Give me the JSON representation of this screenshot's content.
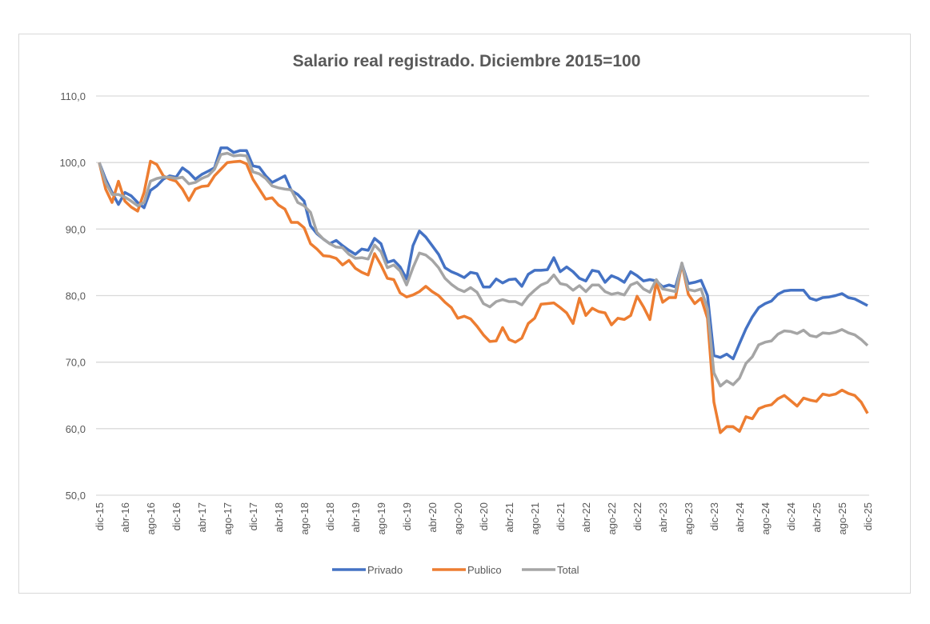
{
  "chart_data": {
    "type": "line",
    "title": "Salario real registrado.  Diciembre 2015=100",
    "xlabel": "",
    "ylabel": "",
    "frequency": "monthly",
    "x_tick_labels": [
      "dic-15",
      "abr-16",
      "ago-16",
      "dic-16",
      "abr-17",
      "ago-17",
      "dic-17",
      "abr-18",
      "ago-18",
      "dic-18",
      "abr-19",
      "ago-19",
      "dic-19",
      "abr-20",
      "ago-20",
      "dic-20",
      "abr-21",
      "ago-21",
      "dic-21",
      "abr-22",
      "ago-22",
      "dic-22",
      "abr-23",
      "ago-23",
      "dic-23",
      "abr-24",
      "ago-24",
      "dic-24",
      "abr-25",
      "ago-25",
      "dic-25"
    ],
    "y_tick_labels": [
      "50,0",
      "60,0",
      "70,0",
      "80,0",
      "90,0",
      "100,0",
      "110,0"
    ],
    "ylim": [
      50,
      110
    ],
    "y_ticks": [
      50,
      60,
      70,
      80,
      90,
      100,
      110
    ],
    "grid": true,
    "legend_position": "bottom",
    "series": [
      {
        "name": "Privado",
        "color": "#4472c4",
        "values": [
          100,
          97.5,
          95.5,
          93.7,
          95.5,
          95,
          94,
          93.2,
          95.8,
          96.5,
          97.5,
          98,
          97.8,
          99.2,
          98.5,
          97.5,
          98.2,
          98.7,
          99.2,
          102.2,
          102.2,
          101.5,
          101.8,
          101.8,
          99.5,
          99.3,
          98,
          97,
          97.5,
          98,
          95.8,
          95.2,
          94.2,
          90.5,
          89.3,
          88.5,
          87.8,
          88.3,
          87.5,
          86.8,
          86.2,
          87,
          86.8,
          88.6,
          87.8,
          85,
          85.3,
          84.3,
          82.5,
          87.5,
          89.7,
          88.8,
          87.5,
          86.2,
          84.2,
          83.6,
          83.2,
          82.7,
          83.5,
          83.3,
          81.3,
          81.3,
          82.5,
          81.9,
          82.4,
          82.5,
          81.4,
          83.2,
          83.8,
          83.8,
          83.9,
          85.7,
          83.6,
          84.3,
          83.6,
          82.6,
          82.2,
          83.8,
          83.6,
          82,
          83,
          82.6,
          82,
          83.6,
          83,
          82.2,
          82.4,
          82.2,
          81.3,
          81.6,
          81.3,
          84.8,
          81.8,
          82,
          82.3,
          80,
          71,
          70.7,
          71.2,
          70.5,
          72.8,
          75,
          76.8,
          78.2,
          78.8,
          79.2,
          80.2,
          80.7,
          80.8,
          80.8,
          80.8,
          79.6,
          79.3,
          79.7,
          79.8,
          80,
          80.3,
          79.7,
          79.5,
          79,
          78.5
        ]
      },
      {
        "name": "Publico",
        "color": "#ed7d31",
        "values": [
          100,
          96,
          94,
          97.2,
          94.2,
          93.3,
          92.7,
          95.5,
          100.2,
          99.7,
          98,
          97.5,
          97.2,
          96,
          94.3,
          96,
          96.4,
          96.5,
          98,
          99,
          100,
          100.1,
          100.2,
          99.8,
          97.5,
          96,
          94.5,
          94.7,
          93.6,
          93,
          91,
          91,
          90.2,
          87.8,
          87,
          86,
          85.9,
          85.6,
          84.6,
          85.3,
          84.1,
          83.5,
          83.1,
          86.3,
          84.6,
          82.6,
          82.4,
          80.4,
          79.8,
          80.1,
          80.6,
          81.4,
          80.6,
          80,
          79,
          78.2,
          76.6,
          76.9,
          76.5,
          75.4,
          74.1,
          73.1,
          73.2,
          75.2,
          73.4,
          73,
          73.6,
          75.8,
          76.6,
          78.7,
          78.8,
          78.9,
          78.2,
          77.4,
          75.8,
          79.6,
          77,
          78.1,
          77.6,
          77.4,
          75.6,
          76.6,
          76.4,
          77,
          79.9,
          78.3,
          76.4,
          82,
          79,
          79.7,
          79.7,
          84.8,
          80.2,
          78.8,
          79.6,
          76.6,
          64,
          59.4,
          60.3,
          60.3,
          59.6,
          61.8,
          61.5,
          63,
          63.4,
          63.6,
          64.5,
          65,
          64.2,
          63.4,
          64.6,
          64.3,
          64.1,
          65.2,
          65,
          65.2,
          65.8,
          65.3,
          65,
          64,
          62.3
        ]
      },
      {
        "name": "Total",
        "color": "#a5a5a5",
        "values": [
          100,
          97,
          95.2,
          95.2,
          94.8,
          94.2,
          93.5,
          94,
          97.2,
          97.6,
          97.8,
          97.8,
          97.6,
          97.8,
          96.8,
          97,
          97.6,
          98,
          99,
          101.2,
          101.4,
          101,
          101.1,
          101,
          98.6,
          98.3,
          97.6,
          96.5,
          96.2,
          96,
          95.9,
          94,
          93.5,
          92.5,
          89.5,
          88.5,
          87.8,
          87.3,
          87.2,
          86.2,
          85.6,
          85.7,
          85.5,
          87.6,
          86.6,
          84.2,
          84.6,
          83.7,
          81.6,
          84.2,
          86.4,
          86.1,
          85.3,
          84.2,
          82.6,
          81.7,
          81,
          80.6,
          81.2,
          80.5,
          78.8,
          78.3,
          79.1,
          79.4,
          79.1,
          79.1,
          78.6,
          79.9,
          80.8,
          81.6,
          82,
          83.1,
          81.8,
          81.6,
          80.8,
          81.5,
          80.6,
          81.6,
          81.6,
          80.6,
          80.2,
          80.4,
          80.1,
          81.6,
          82,
          81,
          80.5,
          82.4,
          81,
          80.8,
          80.6,
          84.9,
          80.9,
          80.7,
          81,
          78,
          68.4,
          66.4,
          67.2,
          66.6,
          67.6,
          69.8,
          70.8,
          72.6,
          73,
          73.2,
          74.2,
          74.7,
          74.6,
          74.3,
          74.8,
          74,
          73.8,
          74.4,
          74.3,
          74.5,
          74.9,
          74.4,
          74.1,
          73.4,
          72.5
        ]
      }
    ]
  }
}
